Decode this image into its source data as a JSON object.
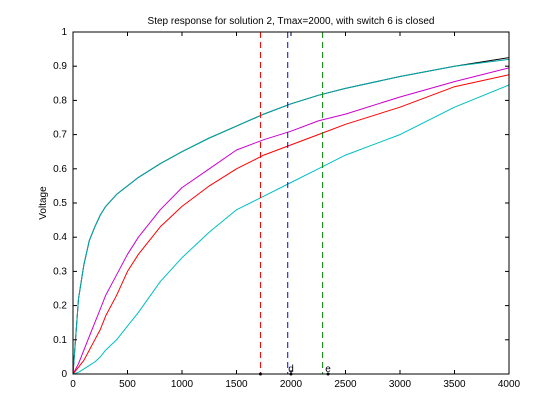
{
  "chart_data": {
    "type": "line",
    "title": "Step response for solution 2, Tmax=2000, with switch 6 is closed",
    "xlabel": "",
    "ylabel": "Voltage",
    "xlim": [
      0,
      4000
    ],
    "ylim": [
      0,
      1
    ],
    "grid": false,
    "legend": "none",
    "x_ticks": [
      0,
      500,
      1000,
      1500,
      2000,
      2500,
      3000,
      3500,
      4000
    ],
    "y_ticks": [
      0,
      0.1,
      0.2,
      0.3,
      0.4,
      0.5,
      0.6,
      0.7,
      0.8,
      0.9,
      1
    ],
    "x_tick_labels": [
      "0",
      "500",
      "1000",
      "1500",
      "2000",
      "2500",
      "3000",
      "3500",
      "4000"
    ],
    "y_tick_labels": [
      "0",
      "0.1",
      "0.2",
      "0.3",
      "0.4",
      "0.5",
      "0.6",
      "0.7",
      "0.8",
      "0.9",
      "1"
    ],
    "x": [
      0,
      50,
      100,
      150,
      200,
      250,
      300,
      400,
      500,
      600,
      800,
      1000,
      1250,
      1500,
      1750,
      2000,
      2250,
      2500,
      3000,
      3500,
      4000
    ],
    "series": [
      {
        "color": "#000000",
        "style": "solid",
        "values": [
          0,
          0.22,
          0.32,
          0.39,
          0.43,
          0.465,
          0.49,
          0.525,
          0.55,
          0.575,
          0.615,
          0.65,
          0.69,
          0.725,
          0.76,
          0.79,
          0.815,
          0.835,
          0.87,
          0.9,
          0.925
        ]
      },
      {
        "color": "#00aaaa",
        "style": "solid",
        "values": [
          0,
          0.22,
          0.32,
          0.39,
          0.43,
          0.465,
          0.49,
          0.525,
          0.55,
          0.575,
          0.615,
          0.65,
          0.69,
          0.725,
          0.76,
          0.79,
          0.815,
          0.835,
          0.87,
          0.9,
          0.92
        ]
      },
      {
        "color": "#cc00cc",
        "style": "solid",
        "values": [
          0,
          0.03,
          0.07,
          0.11,
          0.15,
          0.19,
          0.23,
          0.29,
          0.35,
          0.4,
          0.48,
          0.545,
          0.6,
          0.655,
          0.685,
          0.71,
          0.74,
          0.76,
          0.81,
          0.855,
          0.895
        ]
      },
      {
        "color": "#ff0000",
        "style": "solid",
        "values": [
          0,
          0.02,
          0.04,
          0.07,
          0.1,
          0.13,
          0.17,
          0.23,
          0.3,
          0.35,
          0.43,
          0.49,
          0.55,
          0.6,
          0.64,
          0.67,
          0.7,
          0.73,
          0.78,
          0.84,
          0.875
        ]
      },
      {
        "color": "#00bfbf",
        "style": "solid",
        "values": [
          0,
          0.005,
          0.015,
          0.025,
          0.035,
          0.05,
          0.07,
          0.1,
          0.14,
          0.18,
          0.27,
          0.34,
          0.415,
          0.48,
          0.52,
          0.56,
          0.6,
          0.64,
          0.7,
          0.78,
          0.845
        ]
      }
    ],
    "vlines": [
      {
        "x": 1720,
        "color": "#ff0000",
        "style": "dashed"
      },
      {
        "x": 1970,
        "color": "#0000ff",
        "style": "dashed"
      },
      {
        "x": 2290,
        "color": "#008800",
        "style": "dashed"
      }
    ],
    "markers": [
      {
        "x": 1720,
        "y": 0,
        "label": ""
      },
      {
        "x": 2000,
        "y": 0,
        "label": "d"
      },
      {
        "x": 2340,
        "y": 0,
        "label": "e"
      }
    ]
  }
}
